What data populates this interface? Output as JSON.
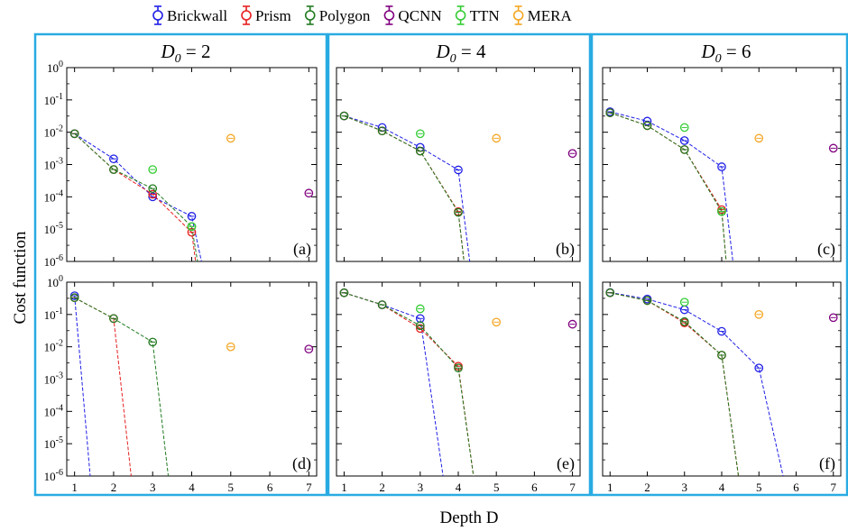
{
  "legend": [
    {
      "name": "Brickwall",
      "color": "#1f1fe6"
    },
    {
      "name": "Prism",
      "color": "#e61f1f"
    },
    {
      "name": "Polygon",
      "color": "#1f7a1f"
    },
    {
      "name": "QCNN",
      "color": "#800080"
    },
    {
      "name": "TTN",
      "color": "#33cc33"
    },
    {
      "name": "MERA",
      "color": "#f5a623"
    }
  ],
  "frame_color": "#29abe2",
  "xlabel": "Depth D",
  "ylabel": "Cost function",
  "columns": [
    "D_0 = 2",
    "D_0 = 4",
    "D_0 = 6"
  ],
  "chart_data": [
    {
      "label": "(a)",
      "type": "scatter",
      "x": [
        1,
        2,
        3,
        4,
        5,
        6,
        7
      ],
      "ylim": [
        1e-06,
        1
      ],
      "yscale": "log",
      "series": [
        {
          "name": "Brickwall",
          "values": [
            [
              1,
              0.009
            ],
            [
              2,
              0.0015
            ],
            [
              3,
              0.0001
            ],
            [
              4,
              2.5e-05
            ],
            [
              4.25,
              1e-06
            ]
          ]
        },
        {
          "name": "Prism",
          "values": [
            [
              1,
              0.009
            ],
            [
              2,
              0.0007
            ],
            [
              3,
              0.00012
            ],
            [
              4,
              8e-06
            ],
            [
              4.1,
              1e-06
            ]
          ]
        },
        {
          "name": "Polygon",
          "values": [
            [
              1,
              0.009
            ],
            [
              2,
              0.0007
            ],
            [
              3,
              0.00018
            ],
            [
              4,
              1.2e-05
            ],
            [
              4.15,
              1e-06
            ]
          ]
        },
        {
          "name": "TTN",
          "values": [
            [
              3,
              0.0007
            ],
            [
              4,
              1.2e-05
            ]
          ]
        },
        {
          "name": "MERA",
          "values": [
            [
              5,
              0.0065
            ]
          ]
        },
        {
          "name": "QCNN",
          "values": [
            [
              7,
              0.00013
            ]
          ]
        }
      ]
    },
    {
      "label": "(b)",
      "type": "scatter",
      "x": [
        1,
        2,
        3,
        4,
        5,
        6,
        7
      ],
      "ylim": [
        1e-06,
        1
      ],
      "yscale": "log",
      "series": [
        {
          "name": "Brickwall",
          "values": [
            [
              1,
              0.032
            ],
            [
              2,
              0.014
            ],
            [
              3,
              0.0034
            ],
            [
              4,
              0.00068
            ],
            [
              4.3,
              1e-06
            ]
          ]
        },
        {
          "name": "Prism",
          "values": [
            [
              1,
              0.032
            ],
            [
              2,
              0.011
            ],
            [
              3,
              0.0026
            ],
            [
              4,
              3.5e-05
            ],
            [
              4.15,
              1e-06
            ]
          ]
        },
        {
          "name": "Polygon",
          "values": [
            [
              1,
              0.032
            ],
            [
              2,
              0.011
            ],
            [
              3,
              0.0026
            ],
            [
              4,
              3.3e-05
            ],
            [
              4.15,
              1e-06
            ]
          ]
        },
        {
          "name": "TTN",
          "values": [
            [
              3,
              0.009
            ]
          ]
        },
        {
          "name": "MERA",
          "values": [
            [
              5,
              0.0065
            ]
          ]
        },
        {
          "name": "QCNN",
          "values": [
            [
              7,
              0.0022
            ]
          ]
        }
      ]
    },
    {
      "label": "(c)",
      "type": "scatter",
      "x": [
        1,
        2,
        3,
        4,
        5,
        6,
        7
      ],
      "ylim": [
        1e-06,
        1
      ],
      "yscale": "log",
      "series": [
        {
          "name": "Brickwall",
          "values": [
            [
              1,
              0.043
            ],
            [
              2,
              0.022
            ],
            [
              3,
              0.0055
            ],
            [
              4,
              0.00085
            ],
            [
              4.3,
              1e-06
            ]
          ]
        },
        {
          "name": "Prism",
          "values": [
            [
              1,
              0.04
            ],
            [
              2,
              0.016
            ],
            [
              3,
              0.0029
            ],
            [
              4,
              4e-05
            ],
            [
              4.12,
              1e-06
            ]
          ]
        },
        {
          "name": "Polygon",
          "values": [
            [
              1,
              0.04
            ],
            [
              2,
              0.016
            ],
            [
              3,
              0.0029
            ],
            [
              4,
              3.5e-05
            ],
            [
              4.12,
              1e-06
            ]
          ]
        },
        {
          "name": "TTN",
          "values": [
            [
              3,
              0.014
            ],
            [
              4,
              3.5e-05
            ]
          ]
        },
        {
          "name": "MERA",
          "values": [
            [
              5,
              0.0065
            ]
          ]
        },
        {
          "name": "QCNN",
          "values": [
            [
              7,
              0.0032
            ]
          ]
        }
      ]
    },
    {
      "label": "(d)",
      "type": "scatter",
      "x": [
        1,
        2,
        3,
        4,
        5,
        6,
        7
      ],
      "ylim": [
        1e-06,
        1
      ],
      "yscale": "log",
      "series": [
        {
          "name": "Brickwall",
          "values": [
            [
              1,
              0.38
            ],
            [
              1.4,
              1e-06
            ]
          ]
        },
        {
          "name": "Prism",
          "values": [
            [
              1,
              0.33
            ],
            [
              2,
              0.075
            ],
            [
              2.45,
              1e-06
            ]
          ]
        },
        {
          "name": "Polygon",
          "values": [
            [
              1,
              0.33
            ],
            [
              2,
              0.075
            ],
            [
              3,
              0.014
            ],
            [
              3.4,
              1e-06
            ]
          ]
        },
        {
          "name": "MERA",
          "values": [
            [
              5,
              0.01
            ]
          ]
        },
        {
          "name": "QCNN",
          "values": [
            [
              7,
              0.0085
            ]
          ]
        }
      ]
    },
    {
      "label": "(e)",
      "type": "scatter",
      "x": [
        1,
        2,
        3,
        4,
        5,
        6,
        7
      ],
      "ylim": [
        1e-06,
        1
      ],
      "yscale": "log",
      "series": [
        {
          "name": "Brickwall",
          "values": [
            [
              1,
              0.47
            ],
            [
              2,
              0.2
            ],
            [
              3,
              0.075
            ],
            [
              3.6,
              1e-06
            ]
          ]
        },
        {
          "name": "Prism",
          "values": [
            [
              1,
              0.47
            ],
            [
              2,
              0.2
            ],
            [
              3,
              0.037
            ],
            [
              4,
              0.0025
            ],
            [
              4.4,
              1e-06
            ]
          ]
        },
        {
          "name": "Polygon",
          "values": [
            [
              1,
              0.47
            ],
            [
              2,
              0.2
            ],
            [
              3,
              0.045
            ],
            [
              4,
              0.0022
            ],
            [
              4.4,
              1e-06
            ]
          ]
        },
        {
          "name": "TTN",
          "values": [
            [
              3,
              0.15
            ]
          ]
        },
        {
          "name": "MERA",
          "values": [
            [
              5,
              0.058
            ]
          ]
        },
        {
          "name": "QCNN",
          "values": [
            [
              7,
              0.05
            ]
          ]
        }
      ]
    },
    {
      "label": "(f)",
      "type": "scatter",
      "x": [
        1,
        2,
        3,
        4,
        5,
        6,
        7
      ],
      "ylim": [
        1e-06,
        1
      ],
      "yscale": "log",
      "series": [
        {
          "name": "Brickwall",
          "values": [
            [
              1,
              0.48
            ],
            [
              2,
              0.3
            ],
            [
              3,
              0.14
            ],
            [
              4,
              0.03
            ],
            [
              5,
              0.0022
            ],
            [
              5.65,
              1e-06
            ]
          ]
        },
        {
          "name": "Prism",
          "values": [
            [
              1,
              0.47
            ],
            [
              2,
              0.27
            ],
            [
              3,
              0.055
            ],
            [
              4,
              0.0055
            ],
            [
              4.45,
              1e-06
            ]
          ]
        },
        {
          "name": "Polygon",
          "values": [
            [
              1,
              0.47
            ],
            [
              2,
              0.27
            ],
            [
              3,
              0.06
            ],
            [
              4,
              0.0055
            ],
            [
              4.45,
              1e-06
            ]
          ]
        },
        {
          "name": "TTN",
          "values": [
            [
              3,
              0.24
            ]
          ]
        },
        {
          "name": "MERA",
          "values": [
            [
              5,
              0.1
            ]
          ]
        },
        {
          "name": "QCNN",
          "values": [
            [
              7,
              0.08
            ]
          ]
        }
      ]
    }
  ]
}
